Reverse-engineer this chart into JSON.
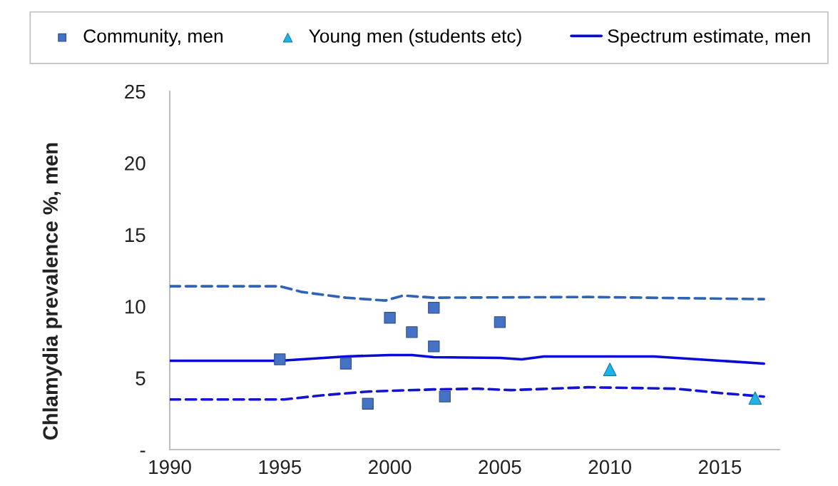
{
  "chart_data": {
    "type": "line",
    "ylabel": "Chlamydia prevalence %, men",
    "xlim": [
      1990,
      2017.7
    ],
    "xticks": [
      1990,
      1995,
      2000,
      2005,
      2010,
      2015
    ],
    "ylim": [
      0,
      25
    ],
    "yticks": [
      {
        "value": 0,
        "label": "-"
      },
      5,
      10,
      15,
      20,
      25
    ],
    "grid": false,
    "legend": "top",
    "series": [
      {
        "name": "Community, men",
        "type": "scatter",
        "marker": "square",
        "color": "#4472c4",
        "x": [
          1995,
          1998,
          1999,
          2000,
          2001,
          2002,
          2002,
          2002.5,
          2005
        ],
        "values": [
          6.3,
          6.0,
          3.2,
          9.2,
          8.2,
          9.9,
          7.2,
          3.7,
          8.9
        ]
      },
      {
        "name": "Young men (students etc)",
        "type": "scatter",
        "marker": "triangle",
        "color": "#1fb3e8",
        "x": [
          2010,
          2016.6
        ],
        "values": [
          5.6,
          3.6
        ]
      },
      {
        "name": "Spectrum estimate, men",
        "marker": "none",
        "line_style": "solid",
        "color": "#0a0ad8",
        "x": [
          1990,
          1995,
          1996,
          1998,
          2000,
          2001,
          2002,
          2005,
          2006,
          2007,
          2012,
          2015,
          2017
        ],
        "values": [
          6.2,
          6.2,
          6.3,
          6.5,
          6.6,
          6.6,
          6.45,
          6.4,
          6.3,
          6.5,
          6.5,
          6.2,
          6.0
        ]
      },
      {
        "marker": "none",
        "line_style": "dashed",
        "color": "#2e63b8",
        "x": [
          1990,
          1995,
          1996,
          1997,
          1998,
          1999.8,
          2000.6,
          2002,
          2009,
          2017
        ],
        "values": [
          11.4,
          11.4,
          11.0,
          10.8,
          10.6,
          10.4,
          10.75,
          10.6,
          10.65,
          10.5
        ]
      },
      {
        "marker": "none",
        "line_style": "dashed",
        "color": "#1414d0",
        "x": [
          1990,
          1995.2,
          1997,
          1999,
          2000,
          2002,
          2004,
          2005.5,
          2009,
          2013,
          2015,
          2017
        ],
        "values": [
          3.5,
          3.5,
          3.8,
          4.05,
          4.1,
          4.2,
          4.25,
          4.15,
          4.35,
          4.25,
          3.95,
          3.7
        ]
      }
    ]
  }
}
